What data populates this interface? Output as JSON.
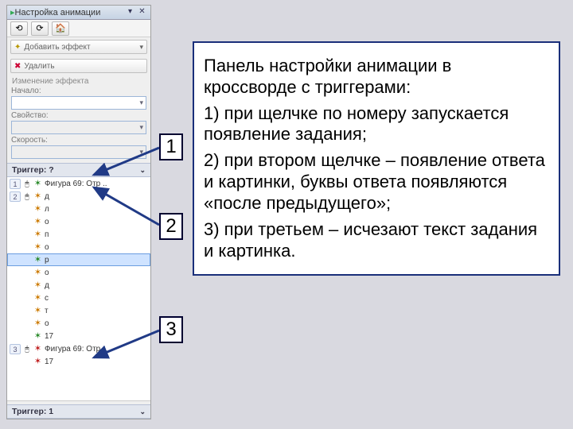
{
  "panel": {
    "title": "Настройка анимации",
    "toolbar_icons": [
      "⟲",
      "⟳",
      "🏠"
    ],
    "add_effect": "Добавить эффект",
    "remove": "Удалить",
    "change_effect_label": "Изменение эффекта",
    "start_label": "Начало:",
    "start_value": "",
    "property_label": "Свойство:",
    "property_value": "",
    "speed_label": "Скорость:",
    "speed_value": "",
    "trigger_top": "Триггер: ?",
    "trigger_bottom": "Триггер: 1",
    "rows": [
      {
        "num": "1",
        "click": "🖱",
        "star": "green",
        "label": "Фигура 69: Отр .."
      },
      {
        "num": "2",
        "click": "🖱",
        "star": "orange",
        "label": "д"
      },
      {
        "num": "",
        "click": "",
        "star": "orange",
        "label": "л"
      },
      {
        "num": "",
        "click": "",
        "star": "orange",
        "label": "о"
      },
      {
        "num": "",
        "click": "",
        "star": "orange",
        "label": "п"
      },
      {
        "num": "",
        "click": "",
        "star": "orange",
        "label": "о"
      },
      {
        "num": "",
        "click": "",
        "star": "green",
        "label": "р",
        "sel": true
      },
      {
        "num": "",
        "click": "",
        "star": "orange",
        "label": "о"
      },
      {
        "num": "",
        "click": "",
        "star": "orange",
        "label": "д"
      },
      {
        "num": "",
        "click": "",
        "star": "orange",
        "label": "с"
      },
      {
        "num": "",
        "click": "",
        "star": "orange",
        "label": "т"
      },
      {
        "num": "",
        "click": "",
        "star": "orange",
        "label": "о"
      },
      {
        "num": "",
        "click": "",
        "star": "green",
        "label": "17"
      },
      {
        "num": "3",
        "click": "🖱",
        "star": "red",
        "label": "Фигура 69: Отр .."
      },
      {
        "num": "",
        "click": "",
        "star": "red",
        "label": "17"
      }
    ]
  },
  "callout": {
    "title": "Панель настройки анимации в кроссворде с триггерами:",
    "p1": "1) при щелчке по номеру запускается появление задания;",
    "p2": "2) при втором щелчке – появление ответа и картинки, буквы ответа появляются «после предыдущего»;",
    "p3": "3) при третьем – исчезают текст задания и картинка."
  },
  "numboxes": {
    "n1": "1",
    "n2": "2",
    "n3": "3"
  },
  "colors": {
    "panel_border": "#a0a0a0",
    "callout_border": "#1a2f7a",
    "arrow_fill": "#203a86",
    "bg": "#d9d9e0"
  }
}
